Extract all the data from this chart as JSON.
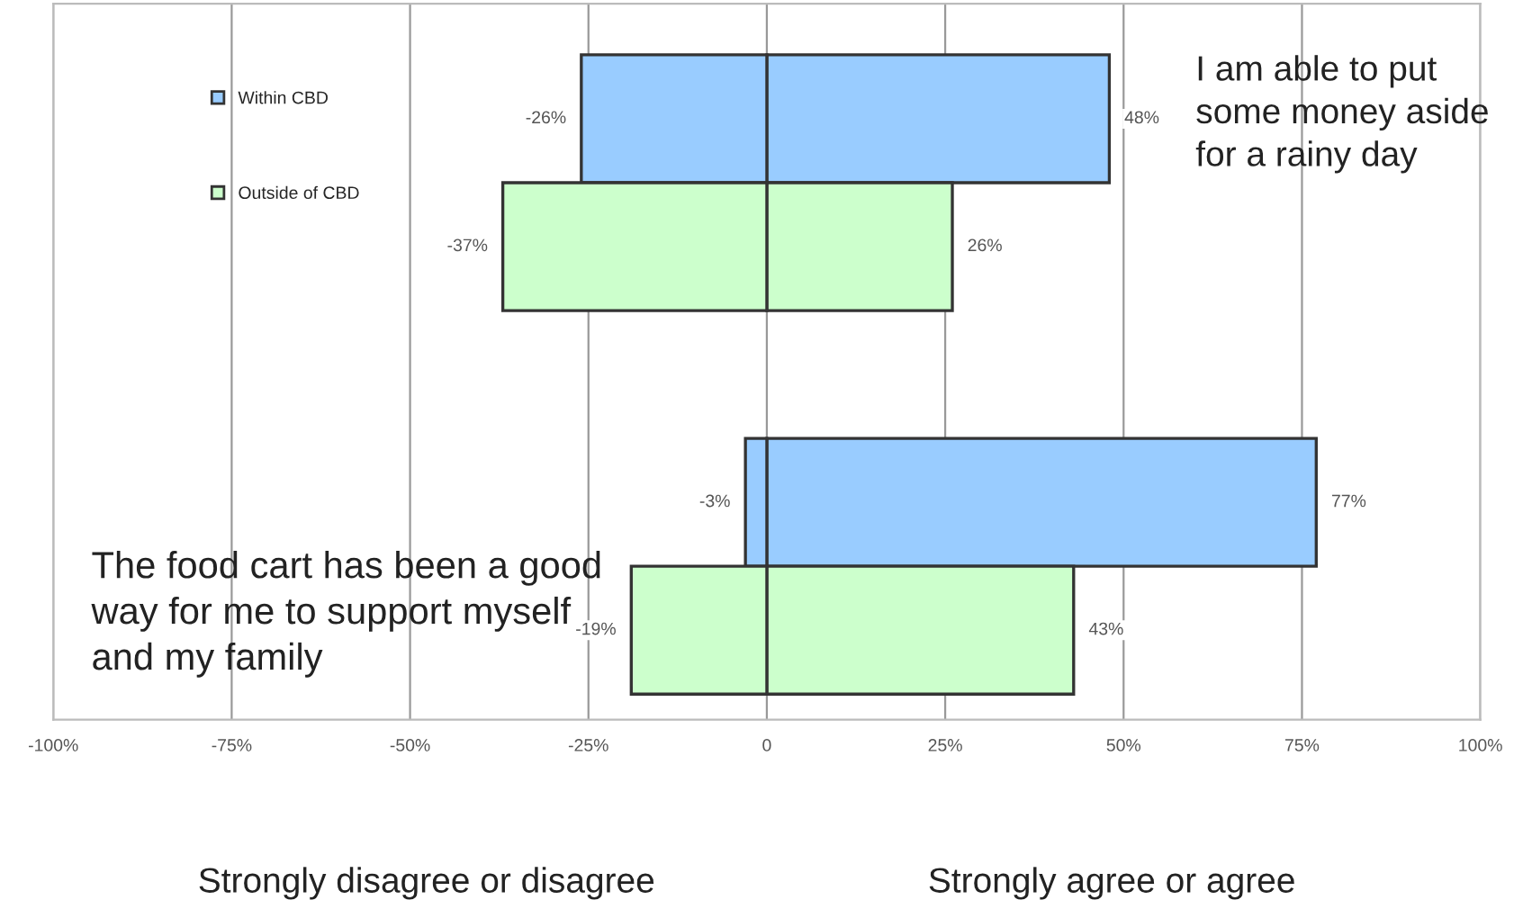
{
  "chart_data": {
    "type": "bar",
    "orientation": "horizontal",
    "stacked": true,
    "categories": [
      null,
      null,
      null,
      null,
      null
    ],
    "series": [
      {
        "name": "Within CBD",
        "color": "#99ccff",
        "values": [
          48,
          null,
          null,
          77,
          null
        ],
        "value_labels": [
          "48%",
          null,
          null,
          "77%",
          null
        ]
      },
      {
        "color": "#99ccff",
        "values": [
          -26,
          null,
          null,
          -3,
          null
        ],
        "value_labels": [
          "-26%",
          null,
          null,
          "-3%",
          null
        ]
      },
      {
        "name": "Outside of CBD",
        "color": "#ccffcc",
        "values": [
          null,
          26,
          null,
          null,
          43
        ],
        "value_labels": [
          null,
          "26%",
          null,
          null,
          "43%"
        ]
      },
      {
        "color": "#ccffcc",
        "values": [
          null,
          -37,
          null,
          null,
          -19
        ],
        "value_labels": [
          null,
          "-37%",
          null,
          null,
          "-19%"
        ]
      }
    ],
    "xlim": [
      -100,
      100
    ],
    "xticks": [
      {
        "value": -100,
        "label": "-100%"
      },
      {
        "value": -75,
        "label": "-75%"
      },
      {
        "value": -50,
        "label": "-50%"
      },
      {
        "value": -25,
        "label": "-25%"
      },
      0,
      {
        "value": 25,
        "label": "25%"
      },
      {
        "value": 50,
        "label": "50%"
      },
      {
        "value": 75,
        "label": "75%"
      },
      {
        "value": 100,
        "label": "100%"
      }
    ],
    "tick_labels": "x",
    "grid": "x",
    "legend": "top left",
    "annotations": [
      "I am able to put some money aside for a rainy day",
      "The food cart has been a good way for me to support myself and my family",
      "Strongly disagree or disagree",
      "Strongly agree or agree"
    ]
  }
}
